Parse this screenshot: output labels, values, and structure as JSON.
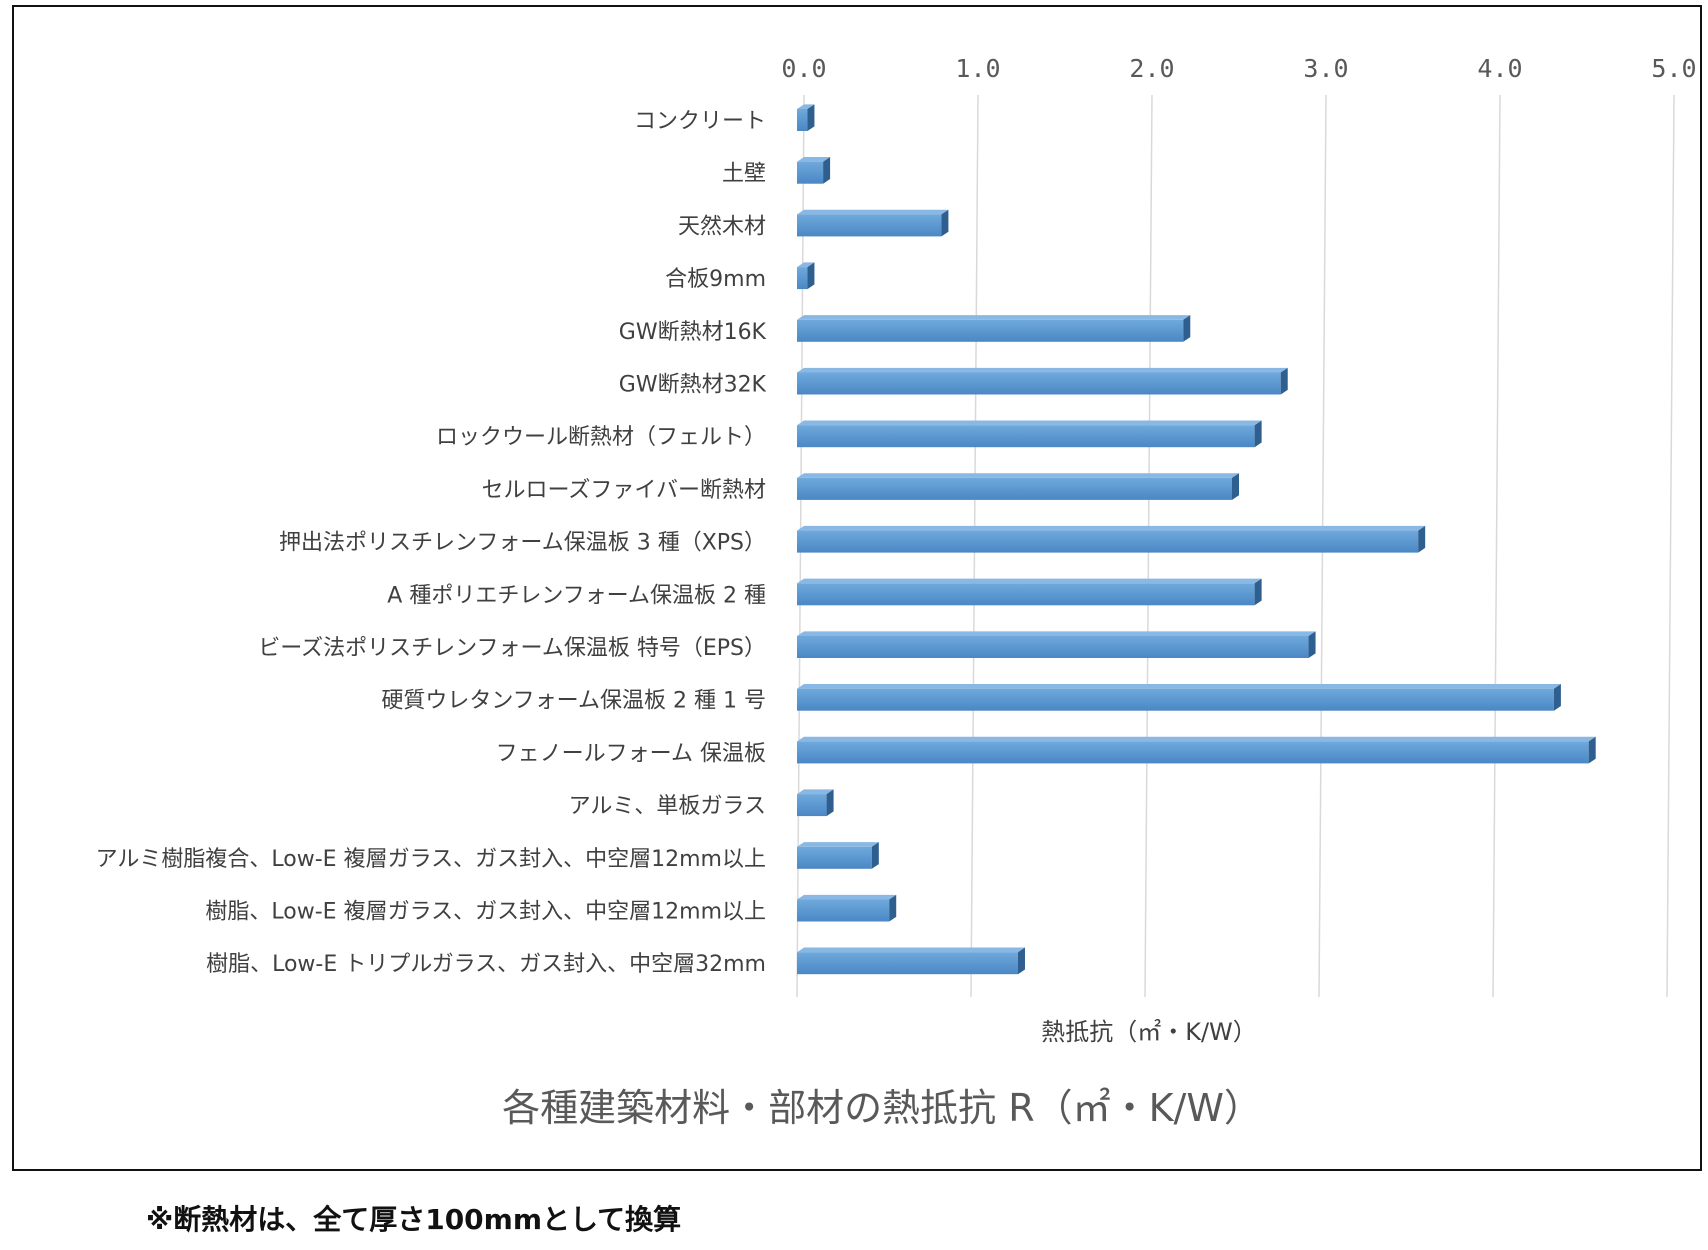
{
  "chart_data": {
    "type": "bar",
    "orientation": "horizontal",
    "title": "各種建築材料・部材の熱抵抗 R（㎡・K/W）",
    "xlabel": "熱抵抗（㎡・K/W）",
    "ylabel": "",
    "xlim": [
      0,
      5
    ],
    "ticks": [
      "0.0",
      "1.0",
      "2.0",
      "3.0",
      "4.0",
      "5.0"
    ],
    "grid": true,
    "legend": "none",
    "categories": [
      "コンクリート",
      "土壁",
      "天然木材",
      "合板9mm",
      "GW断熱材16K",
      "GW断熱材32K",
      "ロックウール断熱材（フェルト）",
      "セルローズファイバー断熱材",
      "押出法ポリスチレンフォーム保温板 3 種（XPS）",
      "A 種ポリエチレンフォーム保温板 2 種",
      "ビーズ法ポリスチレンフォーム保温板 特号（EPS）",
      "硬質ウレタンフォーム保温板 2 種 1 号",
      "フェノールフォーム 保温板",
      "アルミ、単板ガラス",
      "アルミ樹脂複合、Low-E 複層ガラス、ガス封入、中空層12mm以上",
      "樹脂、Low-E 複層ガラス、ガス封入、中空層12mm以上",
      "樹脂、Low-E トリプルガラス、ガス封入、中空層32mm"
    ],
    "values": [
      0.06,
      0.15,
      0.83,
      0.06,
      2.22,
      2.78,
      2.63,
      2.5,
      3.57,
      2.63,
      2.94,
      4.35,
      4.55,
      0.17,
      0.43,
      0.53,
      1.27
    ],
    "bar_color": "#5b9bd5"
  },
  "footnote": "※断熱材は、全て厚さ100mmとして換算"
}
